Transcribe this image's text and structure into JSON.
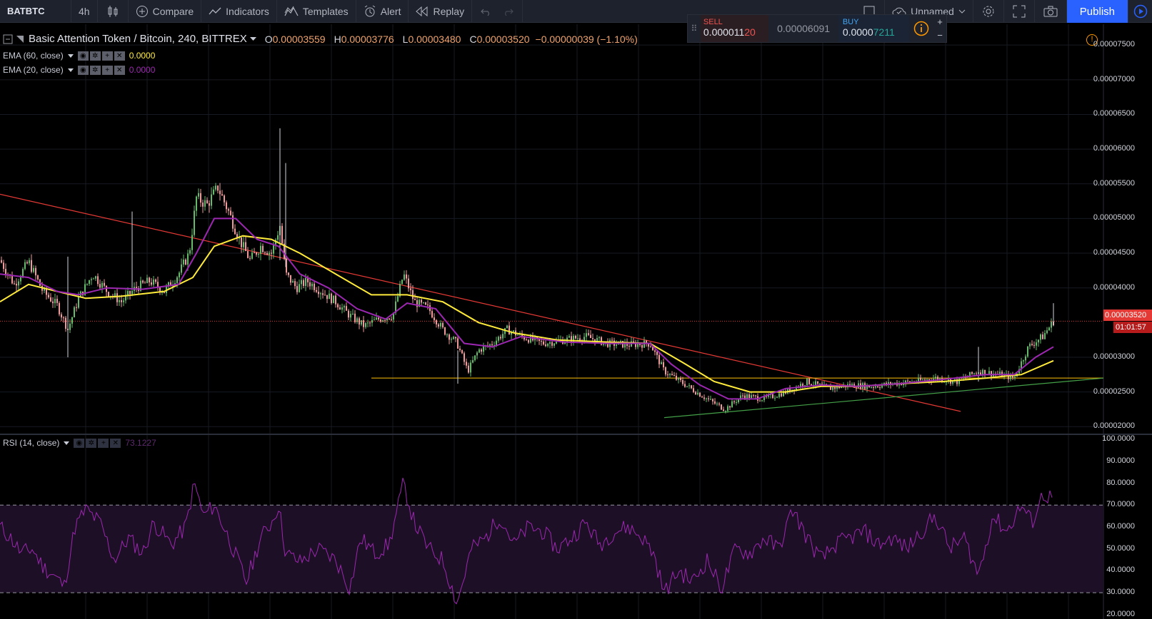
{
  "toolbar": {
    "symbol": "BATBTC",
    "interval": "4h",
    "compare": "Compare",
    "indicators": "Indicators",
    "templates": "Templates",
    "alert": "Alert",
    "replay": "Replay",
    "layout_name": "Unnamed",
    "publish": "Publish"
  },
  "legend": {
    "title": "Basic Attention Token / Bitcoin, 240, BITTREX",
    "o_label": "O",
    "o": "0.00003559",
    "h_label": "H",
    "h": "0.00003776",
    "l_label": "L",
    "l": "0.00003480",
    "c_label": "C",
    "c": "0.00003520",
    "change": "−0.00000039 (−1.10%)"
  },
  "indicators": [
    {
      "label": "EMA (60, close)",
      "value": "0.0000",
      "color": "#ffeb3b"
    },
    {
      "label": "EMA (20, close)",
      "value": "0.0000",
      "color": "#9c27b0"
    }
  ],
  "rsi": {
    "label": "RSI (14, close)",
    "value": "73.1227",
    "color": "#9c27b0"
  },
  "trade": {
    "sell_label": "SELL",
    "sell_price_a": "0.000011",
    "sell_price_b": "20",
    "spread": "0.00006091",
    "buy_label": "BUY",
    "buy_price_a": "0.0000",
    "buy_price_b": "7211"
  },
  "price_axis": [
    "0.00007500",
    "0.00007000",
    "0.00006500",
    "0.00006000",
    "0.00005500",
    "0.00005000",
    "0.00004500",
    "0.00004000",
    "0.00003000",
    "0.00002500",
    "0.00002000"
  ],
  "current_price": "0.00003520",
  "countdown": "01:01:57",
  "rsi_axis": [
    "100.0000",
    "90.0000",
    "80.0000",
    "70.0000",
    "60.0000",
    "50.0000",
    "40.0000",
    "30.0000",
    "20.0000"
  ],
  "colors": {
    "ema60": "#ffeb3b",
    "ema20": "#9c27b0",
    "rsi": "#9c27b0",
    "trendline_down": "#e53935",
    "trendline_up": "#43a047",
    "support": "#ffc107",
    "up_candle": "#66bb6a",
    "down_candle": "#ef9a9a"
  },
  "chart_data": {
    "type": "candlestick",
    "price_range": [
      1.9e-05,
      7.8e-05
    ],
    "rsi_range": [
      18,
      102
    ],
    "overbought": 70,
    "oversold": 30,
    "close_path": [
      [
        0,
        4.4e-05
      ],
      [
        20,
        4.05e-05
      ],
      [
        40,
        4.38e-05
      ],
      [
        60,
        3.95e-05
      ],
      [
        80,
        3.75e-05
      ],
      [
        95,
        3.4e-05
      ],
      [
        110,
        3.85e-05
      ],
      [
        130,
        4.2e-05
      ],
      [
        150,
        3.95e-05
      ],
      [
        170,
        3.8e-05
      ],
      [
        190,
        4e-05
      ],
      [
        210,
        4.1e-05
      ],
      [
        230,
        3.95e-05
      ],
      [
        250,
        4.2e-05
      ],
      [
        265,
        4.5e-05
      ],
      [
        275,
        5.3e-05
      ],
      [
        290,
        5.2e-05
      ],
      [
        305,
        5.45e-05
      ],
      [
        320,
        5.1e-05
      ],
      [
        335,
        4.7e-05
      ],
      [
        350,
        4.4e-05
      ],
      [
        365,
        4.6e-05
      ],
      [
        380,
        4.5e-05
      ],
      [
        392,
        4.9e-05
      ],
      [
        400,
        4.2e-05
      ],
      [
        415,
        4e-05
      ],
      [
        430,
        4.1e-05
      ],
      [
        450,
        3.95e-05
      ],
      [
        470,
        3.8e-05
      ],
      [
        490,
        3.6e-05
      ],
      [
        510,
        3.45e-05
      ],
      [
        530,
        3.55e-05
      ],
      [
        550,
        3.6e-05
      ],
      [
        565,
        4.2e-05
      ],
      [
        580,
        3.8e-05
      ],
      [
        600,
        3.7e-05
      ],
      [
        620,
        3.4e-05
      ],
      [
        640,
        3.2e-05
      ],
      [
        655,
        2.8e-05
      ],
      [
        670,
        3.1e-05
      ],
      [
        690,
        3.2e-05
      ],
      [
        710,
        3.4e-05
      ],
      [
        730,
        3.3e-05
      ],
      [
        760,
        3.2e-05
      ],
      [
        790,
        3.25e-05
      ],
      [
        820,
        3.3e-05
      ],
      [
        850,
        3.2e-05
      ],
      [
        880,
        3.18e-05
      ],
      [
        910,
        3.2e-05
      ],
      [
        930,
        2.8e-05
      ],
      [
        960,
        2.6e-05
      ],
      [
        990,
        2.4e-05
      ],
      [
        1015,
        2.25e-05
      ],
      [
        1040,
        2.45e-05
      ],
      [
        1070,
        2.4e-05
      ],
      [
        1100,
        2.5e-05
      ],
      [
        1130,
        2.65e-05
      ],
      [
        1160,
        2.55e-05
      ],
      [
        1190,
        2.6e-05
      ],
      [
        1220,
        2.58e-05
      ],
      [
        1250,
        2.62e-05
      ],
      [
        1280,
        2.65e-05
      ],
      [
        1310,
        2.7e-05
      ],
      [
        1340,
        2.65e-05
      ],
      [
        1370,
        2.8e-05
      ],
      [
        1400,
        2.75e-05
      ],
      [
        1420,
        2.7e-05
      ],
      [
        1440,
        3.15e-05
      ],
      [
        1460,
        3.3e-05
      ],
      [
        1475,
        3.52e-05
      ]
    ],
    "ema20_path": [
      [
        0,
        4.2e-05
      ],
      [
        40,
        4.15e-05
      ],
      [
        80,
        3.95e-05
      ],
      [
        110,
        3.9e-05
      ],
      [
        150,
        4e-05
      ],
      [
        200,
        3.98e-05
      ],
      [
        250,
        4.05e-05
      ],
      [
        275,
        4.5e-05
      ],
      [
        300,
        5e-05
      ],
      [
        330,
        5e-05
      ],
      [
        360,
        4.7e-05
      ],
      [
        390,
        4.6e-05
      ],
      [
        420,
        4.2e-05
      ],
      [
        460,
        4e-05
      ],
      [
        500,
        3.7e-05
      ],
      [
        540,
        3.55e-05
      ],
      [
        570,
        3.78e-05
      ],
      [
        610,
        3.7e-05
      ],
      [
        650,
        3.2e-05
      ],
      [
        690,
        3.15e-05
      ],
      [
        730,
        3.3e-05
      ],
      [
        790,
        3.22e-05
      ],
      [
        850,
        3.2e-05
      ],
      [
        910,
        3.2e-05
      ],
      [
        940,
        2.9e-05
      ],
      [
        980,
        2.6e-05
      ],
      [
        1020,
        2.4e-05
      ],
      [
        1060,
        2.4e-05
      ],
      [
        1100,
        2.55e-05
      ],
      [
        1150,
        2.6e-05
      ],
      [
        1200,
        2.58e-05
      ],
      [
        1260,
        2.62e-05
      ],
      [
        1320,
        2.68e-05
      ],
      [
        1380,
        2.75e-05
      ],
      [
        1420,
        2.75e-05
      ],
      [
        1450,
        3e-05
      ],
      [
        1475,
        3.15e-05
      ]
    ],
    "ema60_path": [
      [
        0,
        3.8e-05
      ],
      [
        40,
        4.05e-05
      ],
      [
        80,
        3.95e-05
      ],
      [
        120,
        3.85e-05
      ],
      [
        170,
        3.88e-05
      ],
      [
        230,
        3.95e-05
      ],
      [
        270,
        4.15e-05
      ],
      [
        300,
        4.6e-05
      ],
      [
        340,
        4.75e-05
      ],
      [
        380,
        4.7e-05
      ],
      [
        420,
        4.5e-05
      ],
      [
        470,
        4.2e-05
      ],
      [
        520,
        3.9e-05
      ],
      [
        570,
        3.9e-05
      ],
      [
        620,
        3.8e-05
      ],
      [
        670,
        3.5e-05
      ],
      [
        720,
        3.35e-05
      ],
      [
        780,
        3.25e-05
      ],
      [
        850,
        3.22e-05
      ],
      [
        910,
        3.2e-05
      ],
      [
        960,
        2.9e-05
      ],
      [
        1000,
        2.65e-05
      ],
      [
        1050,
        2.5e-05
      ],
      [
        1100,
        2.5e-05
      ],
      [
        1150,
        2.58e-05
      ],
      [
        1200,
        2.58e-05
      ],
      [
        1260,
        2.62e-05
      ],
      [
        1320,
        2.65e-05
      ],
      [
        1380,
        2.7e-05
      ],
      [
        1430,
        2.75e-05
      ],
      [
        1475,
        2.95e-05
      ]
    ],
    "rsi_path": [
      [
        0,
        60
      ],
      [
        15,
        55
      ],
      [
        30,
        48
      ],
      [
        45,
        50
      ],
      [
        60,
        42
      ],
      [
        75,
        38
      ],
      [
        90,
        33
      ],
      [
        105,
        60
      ],
      [
        120,
        68
      ],
      [
        140,
        62
      ],
      [
        160,
        45
      ],
      [
        180,
        55
      ],
      [
        200,
        48
      ],
      [
        215,
        62
      ],
      [
        240,
        52
      ],
      [
        260,
        60
      ],
      [
        272,
        80
      ],
      [
        285,
        65
      ],
      [
        300,
        70
      ],
      [
        320,
        55
      ],
      [
        345,
        35
      ],
      [
        365,
        55
      ],
      [
        380,
        62
      ],
      [
        390,
        70
      ],
      [
        400,
        48
      ],
      [
        420,
        44
      ],
      [
        445,
        50
      ],
      [
        470,
        45
      ],
      [
        490,
        32
      ],
      [
        505,
        55
      ],
      [
        525,
        48
      ],
      [
        545,
        52
      ],
      [
        565,
        80
      ],
      [
        580,
        62
      ],
      [
        600,
        50
      ],
      [
        620,
        45
      ],
      [
        640,
        25
      ],
      [
        660,
        50
      ],
      [
        680,
        55
      ],
      [
        700,
        65
      ],
      [
        720,
        52
      ],
      [
        740,
        60
      ],
      [
        760,
        58
      ],
      [
        780,
        50
      ],
      [
        800,
        55
      ],
      [
        820,
        62
      ],
      [
        840,
        52
      ],
      [
        860,
        58
      ],
      [
        880,
        60
      ],
      [
        900,
        55
      ],
      [
        915,
        48
      ],
      [
        930,
        30
      ],
      [
        950,
        40
      ],
      [
        970,
        35
      ],
      [
        990,
        45
      ],
      [
        1010,
        32
      ],
      [
        1030,
        50
      ],
      [
        1050,
        48
      ],
      [
        1070,
        55
      ],
      [
        1090,
        50
      ],
      [
        1110,
        68
      ],
      [
        1130,
        55
      ],
      [
        1150,
        45
      ],
      [
        1170,
        52
      ],
      [
        1190,
        55
      ],
      [
        1210,
        58
      ],
      [
        1230,
        52
      ],
      [
        1250,
        55
      ],
      [
        1270,
        50
      ],
      [
        1290,
        58
      ],
      [
        1310,
        65
      ],
      [
        1330,
        50
      ],
      [
        1350,
        55
      ],
      [
        1370,
        38
      ],
      [
        1390,
        65
      ],
      [
        1410,
        58
      ],
      [
        1430,
        70
      ],
      [
        1445,
        62
      ],
      [
        1460,
        75
      ],
      [
        1475,
        73
      ]
    ],
    "trendline_down": [
      [
        0,
        5.35e-05
      ],
      [
        1345,
        2.22e-05
      ]
    ],
    "trendline_up": [
      [
        930,
        2.13e-05
      ],
      [
        1545,
        2.7e-05
      ]
    ],
    "support_line": [
      [
        520,
        2.7e-05
      ],
      [
        1545,
        2.7e-05
      ]
    ]
  }
}
